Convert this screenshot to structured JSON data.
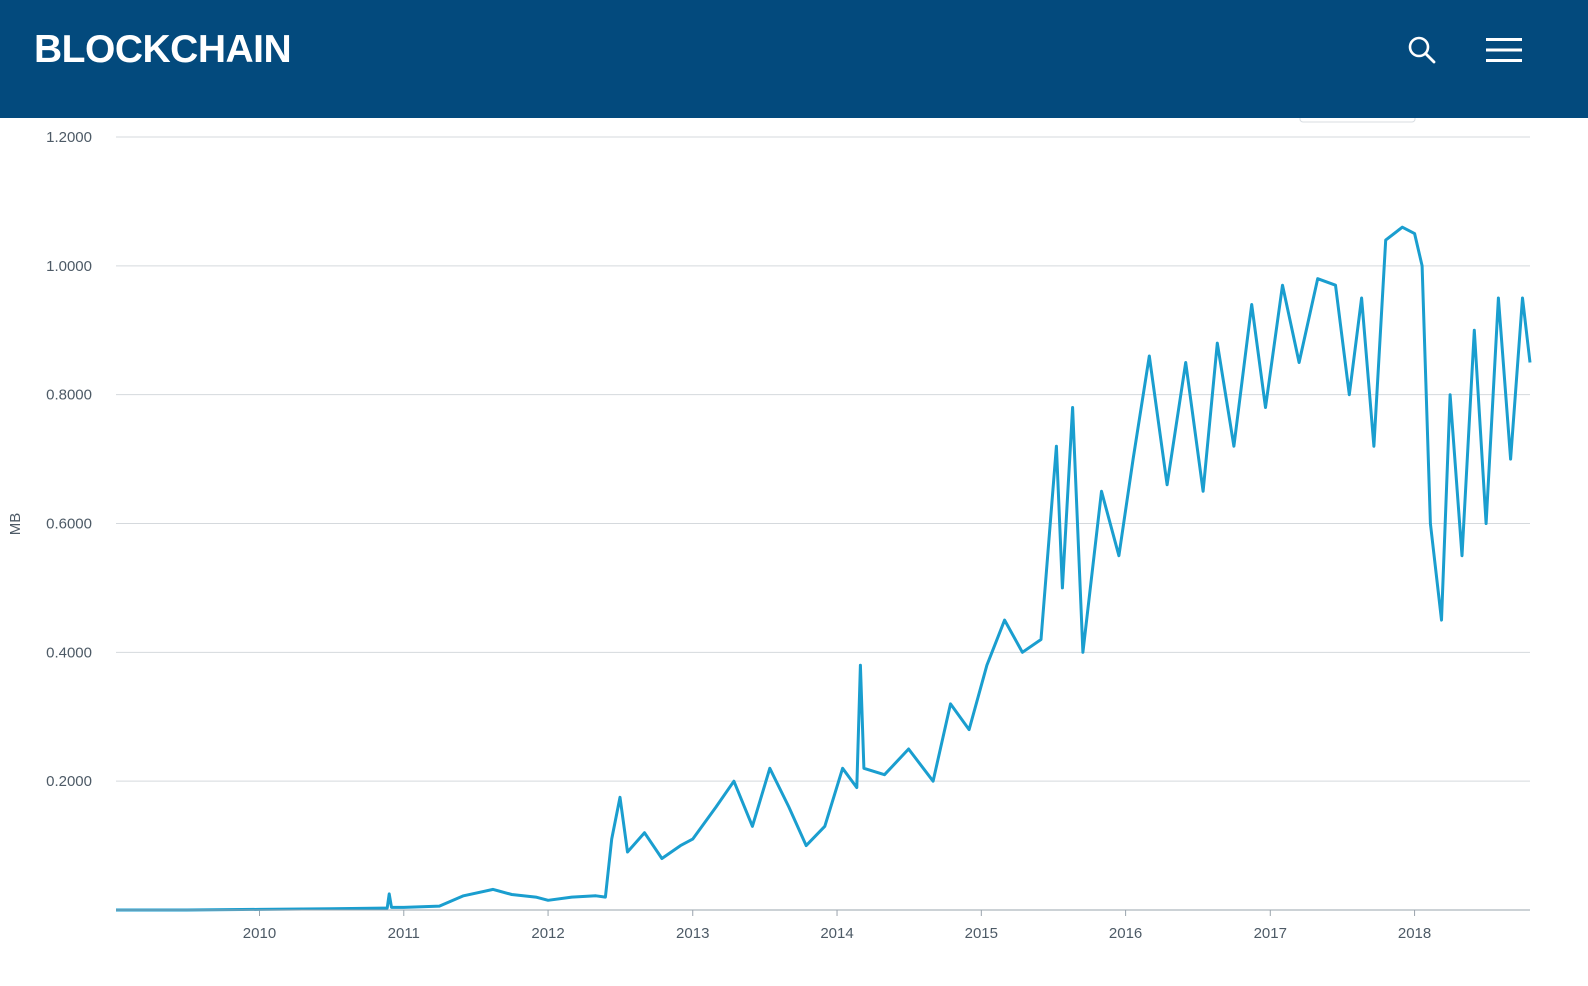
{
  "header": {
    "logo_text": "BLOCKCHAIN",
    "search_icon": "search-icon",
    "menu_icon": "hamburger-menu-icon",
    "background_color": "#034a7d"
  },
  "chart_data": {
    "type": "line",
    "title": "",
    "xlabel": "",
    "ylabel": "MB",
    "grid": true,
    "legend": "none",
    "line_color": "#1a9ecf",
    "x_range": [
      "2009-01-03",
      "2018-10-20"
    ],
    "ylim": [
      0,
      1.2
    ],
    "y_ticks": [
      "0.2000",
      "0.4000",
      "0.6000",
      "0.8000",
      "1.0000",
      "1.2000"
    ],
    "x_ticks": [
      "2010",
      "2011",
      "2012",
      "2013",
      "2014",
      "2015",
      "2016",
      "2017",
      "2018"
    ],
    "series": [
      {
        "points": [
          [
            "2009-01-03",
            0.0
          ],
          [
            "2009-07-01",
            0.0
          ],
          [
            "2010-01-01",
            0.001
          ],
          [
            "2010-07-01",
            0.002
          ],
          [
            "2010-11-20",
            0.003
          ],
          [
            "2010-11-25",
            0.025
          ],
          [
            "2010-12-01",
            0.004
          ],
          [
            "2011-01-01",
            0.004
          ],
          [
            "2011-04-01",
            0.006
          ],
          [
            "2011-06-01",
            0.022
          ],
          [
            "2011-08-15",
            0.032
          ],
          [
            "2011-10-01",
            0.024
          ],
          [
            "2011-12-01",
            0.02
          ],
          [
            "2012-01-01",
            0.015
          ],
          [
            "2012-03-01",
            0.02
          ],
          [
            "2012-05-01",
            0.022
          ],
          [
            "2012-05-25",
            0.02
          ],
          [
            "2012-06-10",
            0.11
          ],
          [
            "2012-07-01",
            0.175
          ],
          [
            "2012-07-20",
            0.09
          ],
          [
            "2012-09-01",
            0.12
          ],
          [
            "2012-10-15",
            0.08
          ],
          [
            "2012-12-01",
            0.1
          ],
          [
            "2013-01-01",
            0.11
          ],
          [
            "2013-03-01",
            0.16
          ],
          [
            "2013-04-15",
            0.2
          ],
          [
            "2013-06-01",
            0.13
          ],
          [
            "2013-07-15",
            0.22
          ],
          [
            "2013-09-01",
            0.16
          ],
          [
            "2013-10-15",
            0.1
          ],
          [
            "2013-12-01",
            0.13
          ],
          [
            "2014-01-15",
            0.22
          ],
          [
            "2014-02-20",
            0.19
          ],
          [
            "2014-03-01",
            0.38
          ],
          [
            "2014-03-10",
            0.22
          ],
          [
            "2014-05-01",
            0.21
          ],
          [
            "2014-07-01",
            0.25
          ],
          [
            "2014-09-01",
            0.2
          ],
          [
            "2014-10-15",
            0.32
          ],
          [
            "2014-12-01",
            0.28
          ],
          [
            "2015-01-15",
            0.38
          ],
          [
            "2015-03-01",
            0.45
          ],
          [
            "2015-04-15",
            0.4
          ],
          [
            "2015-06-01",
            0.42
          ],
          [
            "2015-07-10",
            0.72
          ],
          [
            "2015-07-25",
            0.5
          ],
          [
            "2015-08-20",
            0.78
          ],
          [
            "2015-09-15",
            0.4
          ],
          [
            "2015-11-01",
            0.65
          ],
          [
            "2015-12-15",
            0.55
          ],
          [
            "2016-01-20",
            0.7
          ],
          [
            "2016-03-01",
            0.86
          ],
          [
            "2016-04-15",
            0.66
          ],
          [
            "2016-06-01",
            0.85
          ],
          [
            "2016-07-15",
            0.65
          ],
          [
            "2016-08-20",
            0.88
          ],
          [
            "2016-10-01",
            0.72
          ],
          [
            "2016-11-15",
            0.94
          ],
          [
            "2016-12-20",
            0.78
          ],
          [
            "2017-02-01",
            0.97
          ],
          [
            "2017-03-15",
            0.85
          ],
          [
            "2017-05-01",
            0.98
          ],
          [
            "2017-06-15",
            0.97
          ],
          [
            "2017-07-20",
            0.8
          ],
          [
            "2017-08-20",
            0.95
          ],
          [
            "2017-09-20",
            0.72
          ],
          [
            "2017-10-20",
            1.04
          ],
          [
            "2017-12-01",
            1.06
          ],
          [
            "2018-01-01",
            1.05
          ],
          [
            "2018-01-20",
            1.0
          ],
          [
            "2018-02-10",
            0.6
          ],
          [
            "2018-03-10",
            0.45
          ],
          [
            "2018-04-01",
            0.8
          ],
          [
            "2018-05-01",
            0.55
          ],
          [
            "2018-06-01",
            0.9
          ],
          [
            "2018-07-01",
            0.6
          ],
          [
            "2018-08-01",
            0.95
          ],
          [
            "2018-09-01",
            0.7
          ],
          [
            "2018-10-01",
            0.95
          ],
          [
            "2018-10-20",
            0.85
          ]
        ]
      }
    ]
  }
}
